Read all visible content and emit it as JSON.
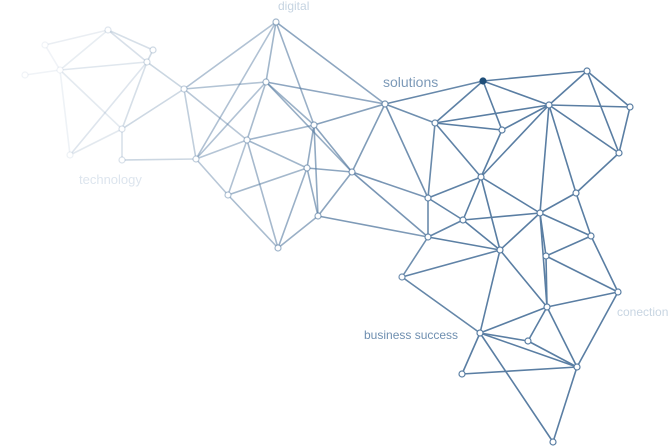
{
  "labels": {
    "digital": "digital",
    "solutions": "solutions",
    "technology": "technology",
    "business_success": "business success",
    "conection": "conection"
  },
  "colors": {
    "strong": "#5a7ea3",
    "accent_node": "#1f4e79",
    "faint": "#dfe6ee"
  }
}
